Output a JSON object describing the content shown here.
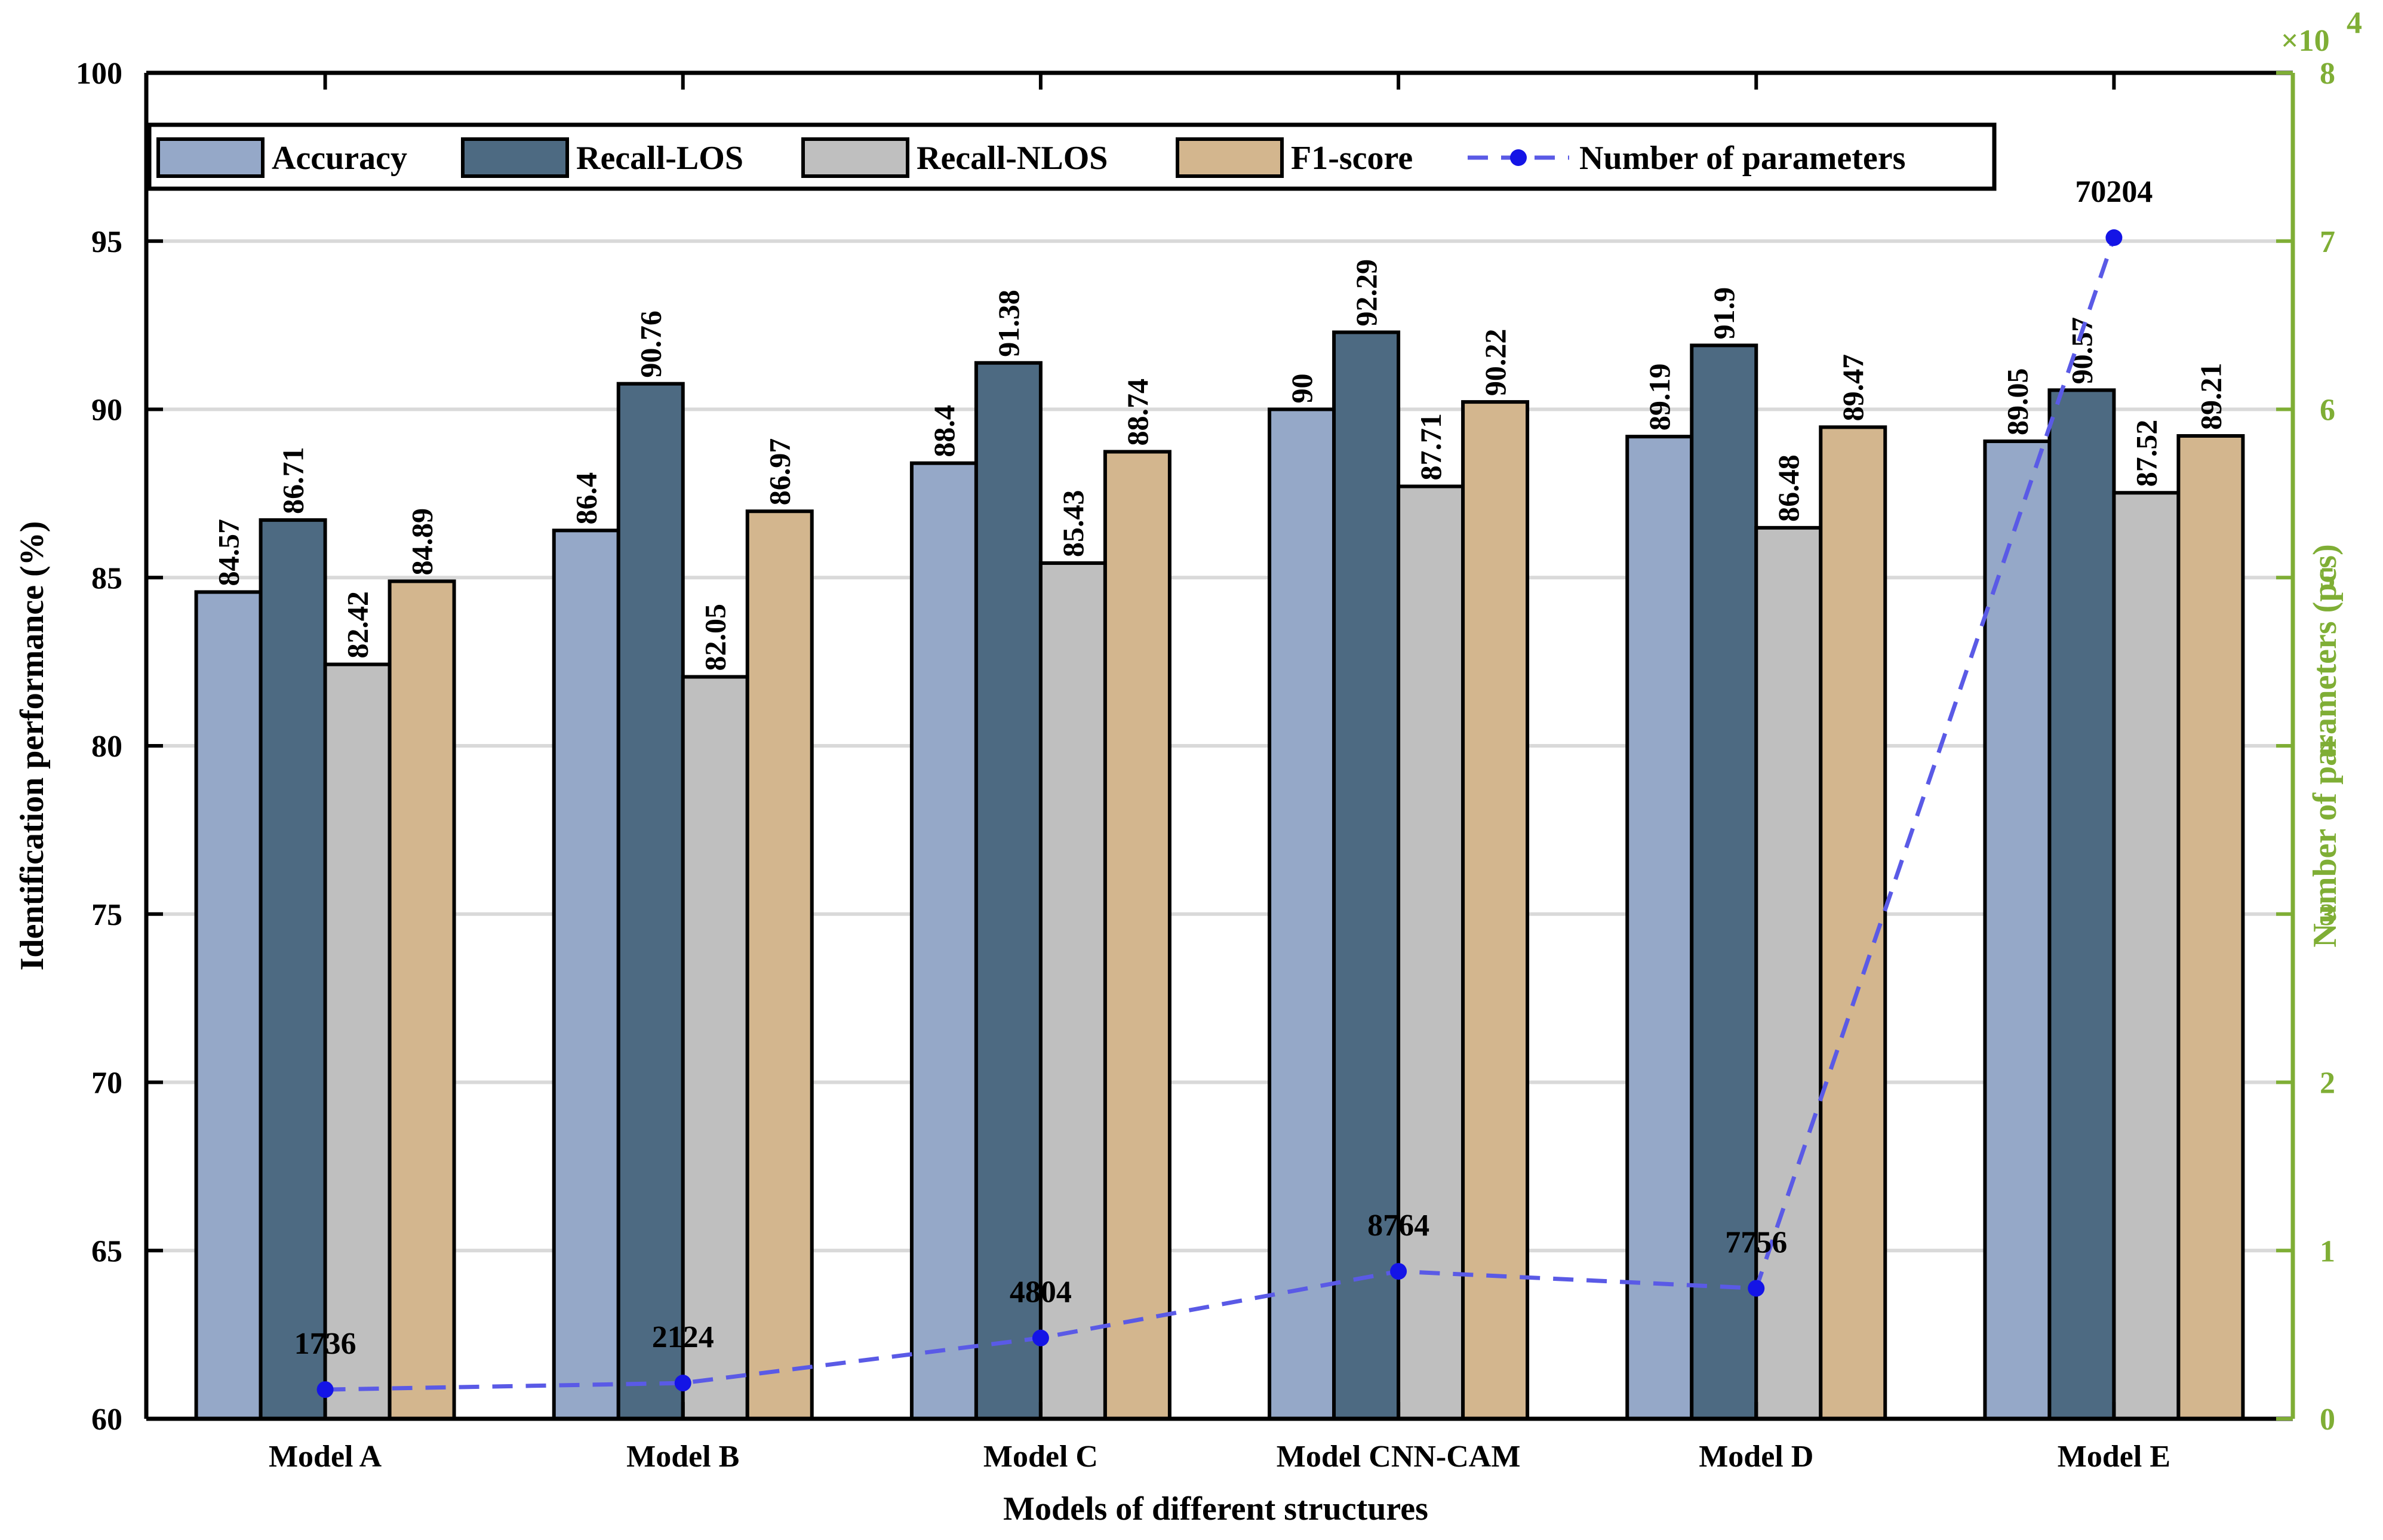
{
  "chart_data": {
    "type": "bar",
    "categories": [
      "Model A",
      "Model B",
      "Model C",
      "Model CNN-CAM",
      "Model D",
      "Model E"
    ],
    "series": [
      {
        "name": "Accuracy",
        "values": [
          84.57,
          86.4,
          88.4,
          90,
          89.19,
          89.05
        ],
        "labels": [
          "84.57",
          "86.4",
          "88.4",
          "90",
          "89.19",
          "89.05"
        ],
        "color": "#95a8c8"
      },
      {
        "name": "Recall-LOS",
        "values": [
          86.71,
          90.76,
          91.38,
          92.29,
          91.9,
          90.57
        ],
        "labels": [
          "86.71",
          "90.76",
          "91.38",
          "92.29",
          "91.9",
          "90.57"
        ],
        "color": "#4d6a82"
      },
      {
        "name": "Recall-NLOS",
        "values": [
          82.42,
          82.05,
          85.43,
          87.71,
          86.48,
          87.52
        ],
        "labels": [
          "82.42",
          "82.05",
          "85.43",
          "87.71",
          "86.48",
          "87.52"
        ],
        "color": "#bfbfbf"
      },
      {
        "name": "F1-score",
        "values": [
          84.89,
          86.97,
          88.74,
          90.22,
          89.47,
          89.21
        ],
        "labels": [
          "84.89",
          "86.97",
          "88.74",
          "90.22",
          "89.47",
          "89.21"
        ],
        "color": "#d3b68e"
      }
    ],
    "line_series": {
      "name": "Number of parameters",
      "values": [
        1736,
        2124,
        4804,
        8764,
        7756,
        70204
      ],
      "labels": [
        "1736",
        "2124",
        "4804",
        "8764",
        "7756",
        "70204"
      ],
      "color": "#5a5ae6",
      "marker_color": "#1414e6"
    },
    "xlabel": "Models of different structures",
    "ylabel": "Identification performance (%)",
    "ylabel_right": "Number of parameters (pcs)",
    "ylim": [
      60,
      100
    ],
    "yticks": [
      "60",
      "65",
      "70",
      "75",
      "80",
      "85",
      "90",
      "95",
      "100"
    ],
    "ylim_right": [
      0,
      80000
    ],
    "yticks_right": [
      "0",
      "1",
      "2",
      "3",
      "4",
      "5",
      "6",
      "7",
      "8"
    ],
    "right_multiplier_base": "×10",
    "right_multiplier_exp": "4",
    "right_axis_color": "#7fae35",
    "grid": "horizontal",
    "legend_position": "top"
  }
}
